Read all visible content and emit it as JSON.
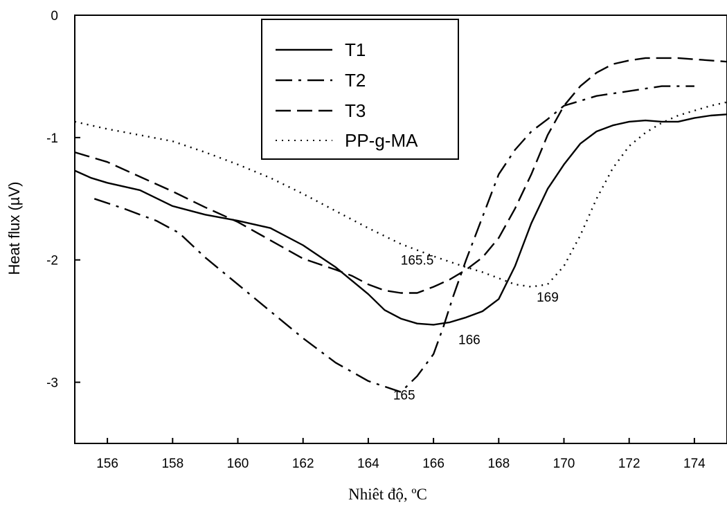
{
  "chart_data": {
    "type": "line",
    "title": "",
    "xlabel": "Nhiêt độ, ºC",
    "ylabel": "Heat flux (µV)",
    "xlim": [
      155,
      175
    ],
    "ylim": [
      -3.5,
      0
    ],
    "xticks": [
      156,
      158,
      160,
      162,
      164,
      166,
      168,
      170,
      172,
      174
    ],
    "yticks": [
      0,
      -1,
      -2,
      -3
    ],
    "grid": false,
    "legend_position": "top-center",
    "series": [
      {
        "name": "T1",
        "style": "solid",
        "x": [
          155,
          155.5,
          156,
          157,
          158,
          159,
          160,
          161,
          162,
          163,
          164,
          164.5,
          165,
          165.5,
          166,
          166.5,
          167,
          167.5,
          168,
          168.5,
          169,
          169.5,
          170,
          170.5,
          171,
          171.5,
          172,
          172.5,
          173,
          173.5,
          174,
          174.5,
          175
        ],
        "y": [
          -1.27,
          -1.33,
          -1.37,
          -1.43,
          -1.56,
          -1.63,
          -1.68,
          -1.74,
          -1.88,
          -2.06,
          -2.28,
          -2.41,
          -2.48,
          -2.52,
          -2.53,
          -2.51,
          -2.47,
          -2.42,
          -2.32,
          -2.05,
          -1.7,
          -1.42,
          -1.22,
          -1.05,
          -0.95,
          -0.9,
          -0.87,
          -0.86,
          -0.87,
          -0.87,
          -0.84,
          -0.82,
          -0.81
        ]
      },
      {
        "name": "T2",
        "style": "dash-dot",
        "x": [
          155.6,
          156.5,
          157.5,
          158.2,
          159,
          160,
          161,
          162,
          163,
          164,
          165,
          165.5,
          166,
          166.3,
          166.6,
          167,
          167.5,
          168,
          168.5,
          169,
          169.5,
          170,
          170.5,
          171,
          171.5,
          172,
          172.5,
          173,
          173.5,
          174
        ],
        "y": [
          -1.5,
          -1.58,
          -1.68,
          -1.78,
          -1.98,
          -2.2,
          -2.42,
          -2.64,
          -2.84,
          -2.99,
          -3.08,
          -2.95,
          -2.77,
          -2.55,
          -2.3,
          -2.0,
          -1.65,
          -1.3,
          -1.1,
          -0.95,
          -0.85,
          -0.74,
          -0.7,
          -0.66,
          -0.64,
          -0.62,
          -0.6,
          -0.58,
          -0.58,
          -0.58
        ]
      },
      {
        "name": "T3",
        "style": "dashed",
        "x": [
          155,
          156,
          157,
          158,
          159,
          160,
          161,
          162,
          163,
          163.5,
          164,
          164.5,
          165,
          165.5,
          166,
          166.5,
          167,
          167.5,
          168,
          168.5,
          169,
          169.5,
          170,
          170.5,
          171,
          171.5,
          172,
          172.5,
          173,
          173.5,
          174,
          174.5,
          175
        ],
        "y": [
          -1.12,
          -1.2,
          -1.32,
          -1.44,
          -1.57,
          -1.69,
          -1.84,
          -1.99,
          -2.08,
          -2.13,
          -2.2,
          -2.25,
          -2.27,
          -2.27,
          -2.22,
          -2.16,
          -2.08,
          -1.98,
          -1.82,
          -1.58,
          -1.3,
          -0.98,
          -0.74,
          -0.58,
          -0.47,
          -0.4,
          -0.37,
          -0.35,
          -0.35,
          -0.35,
          -0.36,
          -0.37,
          -0.38
        ]
      },
      {
        "name": "PP-g-MA",
        "style": "dotted",
        "x": [
          155,
          156,
          157,
          158,
          159,
          160,
          161,
          162,
          163,
          164,
          165,
          166,
          167,
          167.5,
          168,
          168.5,
          169,
          169.5,
          170,
          170.5,
          171,
          171.5,
          172,
          172.5,
          173,
          173.5,
          174,
          174.5,
          175
        ],
        "y": [
          -0.87,
          -0.93,
          -0.98,
          -1.03,
          -1.12,
          -1.22,
          -1.33,
          -1.46,
          -1.6,
          -1.74,
          -1.87,
          -1.97,
          -2.06,
          -2.1,
          -2.15,
          -2.2,
          -2.22,
          -2.2,
          -2.05,
          -1.8,
          -1.5,
          -1.25,
          -1.07,
          -0.96,
          -0.88,
          -0.82,
          -0.78,
          -0.74,
          -0.71
        ]
      }
    ],
    "annotations": [
      {
        "text": "165.5",
        "x": 165.5,
        "y": -2.0
      },
      {
        "text": "169",
        "x": 169.5,
        "y": -2.3
      },
      {
        "text": "166",
        "x": 167.1,
        "y": -2.65
      },
      {
        "text": "165",
        "x": 165.1,
        "y": -3.1
      }
    ]
  }
}
